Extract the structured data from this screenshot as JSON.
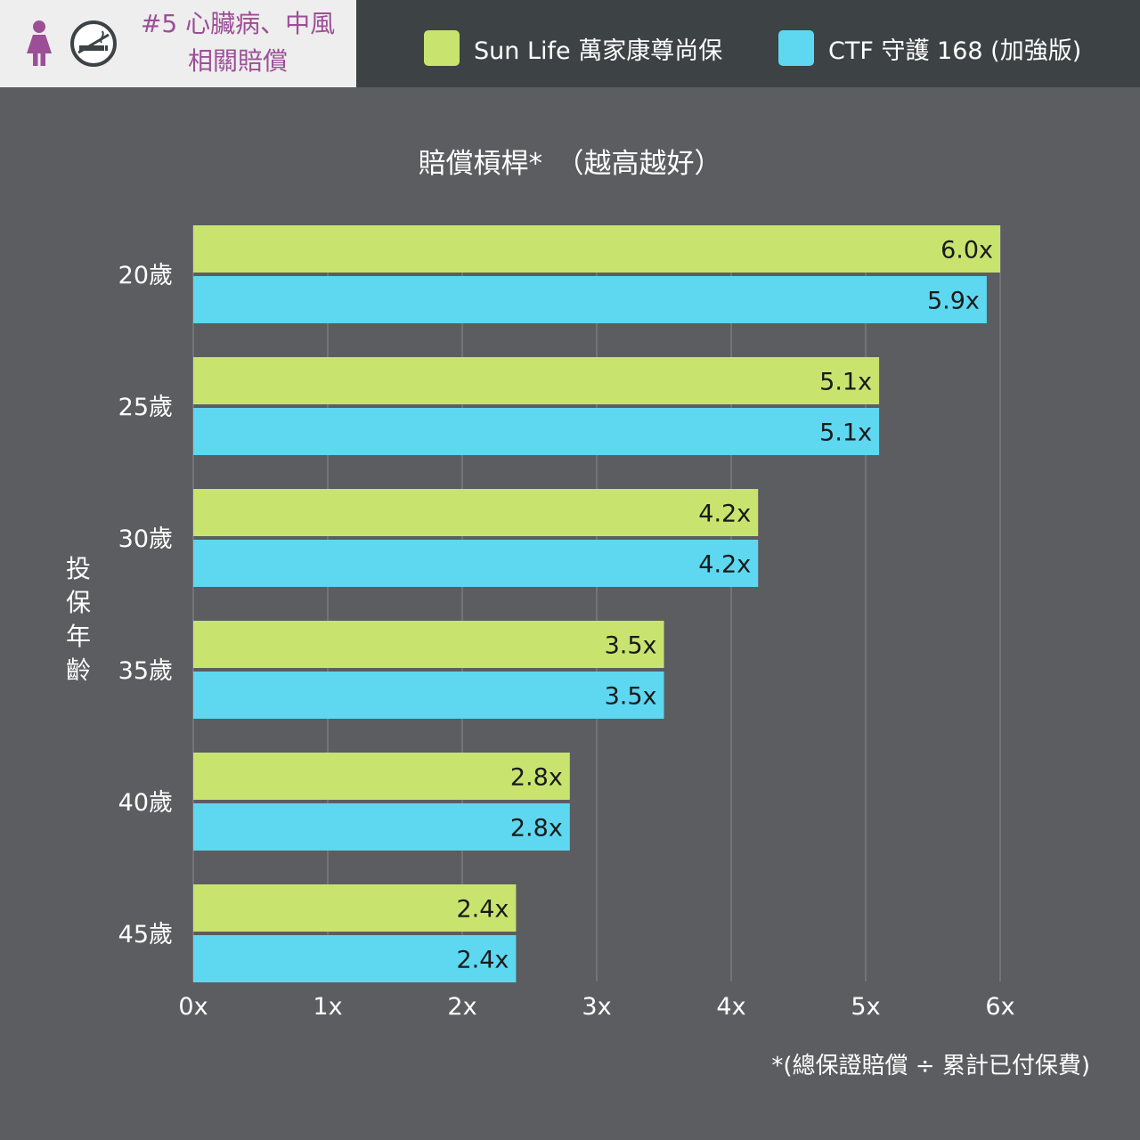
{
  "header": {
    "badge_line1": "#5 心臟病、中風",
    "badge_line2": "相關賠償",
    "woman_icon": "woman-icon",
    "no_smoking_icon": "no-smoking-icon"
  },
  "legend": [
    {
      "label": "Sun Life 萬家康尊尚保",
      "color": "#c8e46e"
    },
    {
      "label": "CTF 守護 168 (加強版)",
      "color": "#5dd8f0"
    }
  ],
  "colors": {
    "background": "#5c5d60",
    "header": "#3d4244",
    "badge_bg": "#eeeeee",
    "badge_text": "#9c4f96",
    "gridline": "#7a7b7e"
  },
  "footnote": "*(總保證賠償 ÷ 累計已付保費)",
  "chart_data": {
    "type": "bar",
    "orientation": "horizontal",
    "title": "賠償槓桿*　（越高越好）",
    "xlabel": "",
    "ylabel": "投保年齡",
    "categories": [
      "20歲",
      "25歲",
      "30歲",
      "35歲",
      "40歲",
      "45歲"
    ],
    "series": [
      {
        "name": "Sun Life 萬家康尊尚保",
        "color": "#c8e46e",
        "values": [
          6.0,
          5.1,
          4.2,
          3.5,
          2.8,
          2.4
        ],
        "labels": [
          "6.0x",
          "5.1x",
          "4.2x",
          "3.5x",
          "2.8x",
          "2.4x"
        ]
      },
      {
        "name": "CTF 守護 168 (加強版)",
        "color": "#5dd8f0",
        "values": [
          5.9,
          5.1,
          4.2,
          3.5,
          2.8,
          2.4
        ],
        "labels": [
          "5.9x",
          "5.1x",
          "4.2x",
          "3.5x",
          "2.8x",
          "2.4x"
        ]
      }
    ],
    "xlim": [
      0,
      6
    ],
    "xticks": [
      0,
      1,
      2,
      3,
      4,
      5,
      6
    ],
    "xtick_labels": [
      "0x",
      "1x",
      "2x",
      "3x",
      "4x",
      "5x",
      "6x"
    ],
    "grid": true,
    "legend_position": "top"
  }
}
